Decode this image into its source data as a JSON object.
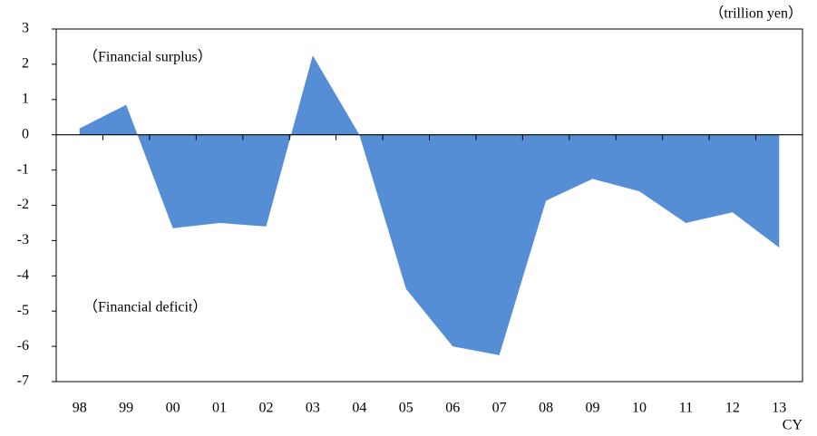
{
  "chart_data": {
    "type": "area",
    "unit_label": "（trillion yen）",
    "x_label": "CY",
    "annotations": [
      "（Financial surplus）",
      "（Financial deficit）"
    ],
    "categories": [
      "98",
      "99",
      "00",
      "01",
      "02",
      "03",
      "04",
      "05",
      "06",
      "07",
      "08",
      "09",
      "10",
      "11",
      "12",
      "13"
    ],
    "values": [
      0.18,
      0.85,
      -2.65,
      -2.5,
      -2.6,
      2.25,
      0.0,
      -4.37,
      -6.0,
      -6.25,
      -1.87,
      -1.25,
      -1.6,
      -2.5,
      -2.2,
      -3.2
    ],
    "color": "#558ed5",
    "ylim": [
      -7,
      3
    ],
    "yticks": [
      -7,
      -6,
      -5,
      -4,
      -3,
      -2,
      -1,
      0,
      1,
      2,
      3
    ],
    "grid": false
  }
}
